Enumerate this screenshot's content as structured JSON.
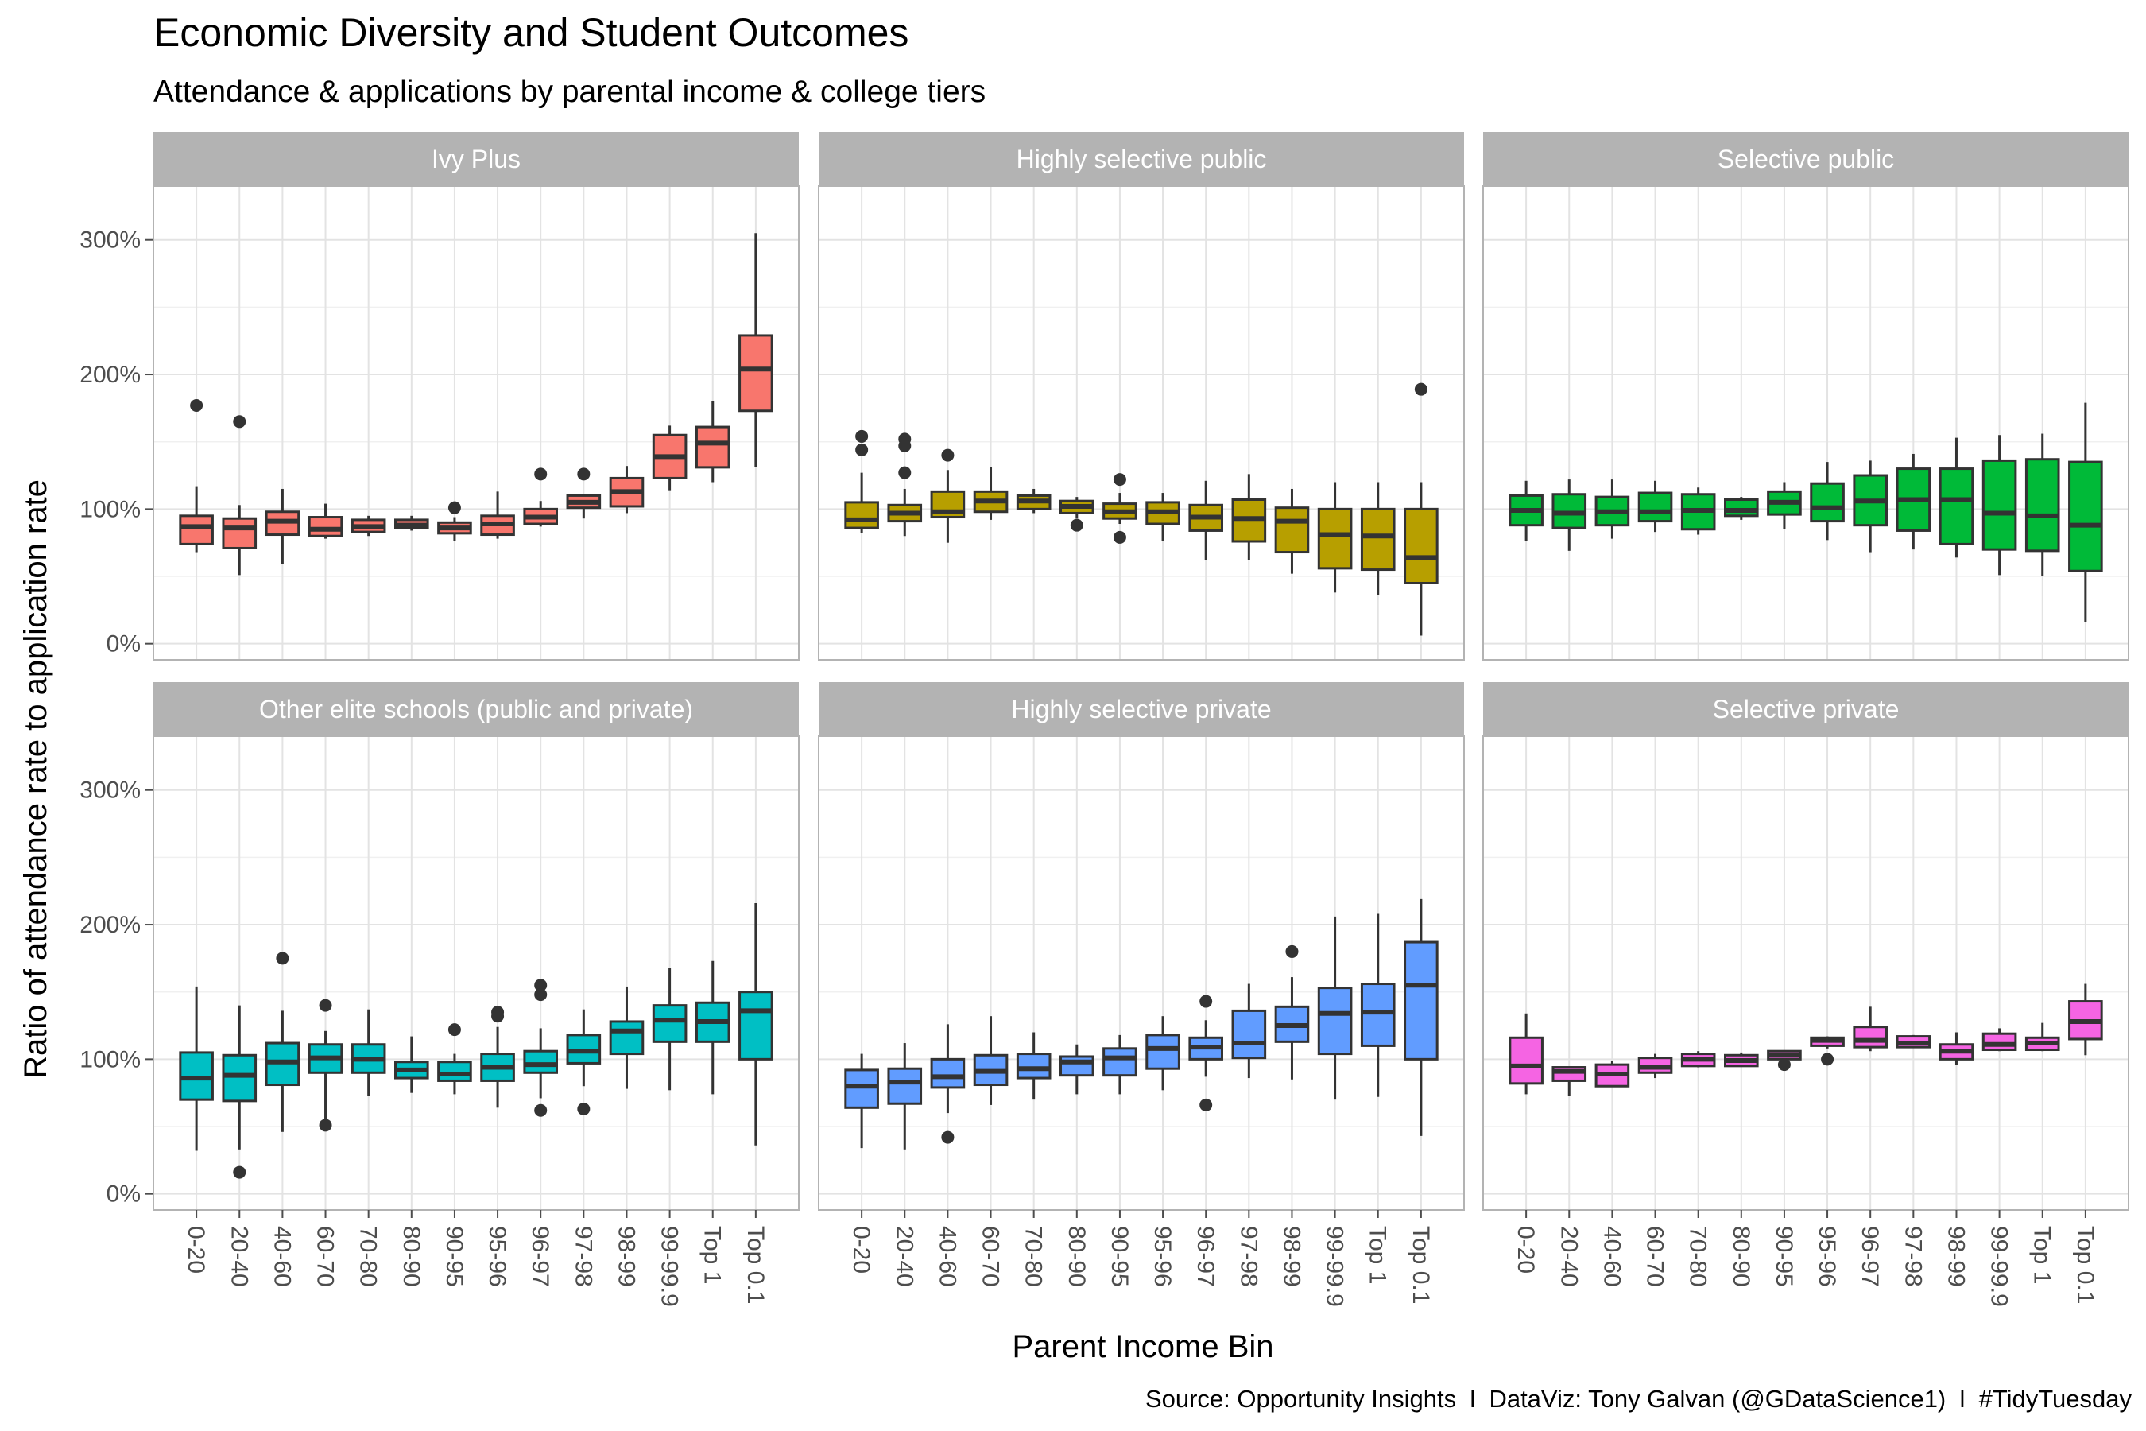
{
  "title": "Economic Diversity and Student Outcomes",
  "subtitle": "Attendance & applications by parental income & college tiers",
  "caption": "Source: Opportunity Insights  l  DataViz: Tony Galvan (@GDataScience1)  l  #TidyTuesday",
  "chart_data": {
    "type": "boxplot",
    "xlabel": "Parent Income Bin",
    "ylabel": "Ratio of attendance rate to application rate",
    "ylim": [
      -0.12,
      3.4
    ],
    "y_ticks": [
      0,
      1,
      2,
      3
    ],
    "y_tick_labels": [
      "0%",
      "100%",
      "200%",
      "300%"
    ],
    "categories": [
      "0-20",
      "20-40",
      "40-60",
      "60-70",
      "70-80",
      "80-90",
      "90-95",
      "95-96",
      "96-97",
      "97-98",
      "98-99",
      "99-99.9",
      "Top 1",
      "Top 0.1"
    ],
    "grid": true,
    "legend": "none",
    "box_fields": [
      "whisker_low",
      "q1",
      "median",
      "q3",
      "whisker_high"
    ],
    "panels": [
      {
        "name": "Ivy Plus",
        "color": "#F8766D",
        "boxes": [
          [
            0.68,
            0.74,
            0.87,
            0.95,
            1.17
          ],
          [
            0.51,
            0.71,
            0.86,
            0.93,
            1.03
          ],
          [
            0.59,
            0.81,
            0.91,
            0.98,
            1.15
          ],
          [
            0.78,
            0.8,
            0.85,
            0.94,
            1.04
          ],
          [
            0.8,
            0.83,
            0.87,
            0.92,
            0.95
          ],
          [
            0.84,
            0.86,
            0.88,
            0.92,
            0.95
          ],
          [
            0.76,
            0.82,
            0.86,
            0.9,
            0.94
          ],
          [
            0.78,
            0.81,
            0.89,
            0.95,
            1.13
          ],
          [
            0.87,
            0.89,
            0.94,
            1.0,
            1.06
          ],
          [
            0.93,
            1.01,
            1.05,
            1.1,
            1.11
          ],
          [
            0.97,
            1.02,
            1.13,
            1.23,
            1.32
          ],
          [
            1.14,
            1.23,
            1.39,
            1.55,
            1.62
          ],
          [
            1.2,
            1.31,
            1.49,
            1.61,
            1.8
          ],
          [
            1.31,
            1.73,
            2.04,
            2.29,
            3.05
          ]
        ],
        "outliers": [
          [
            1.77
          ],
          [
            1.65
          ],
          [],
          [],
          [],
          [],
          [
            1.01
          ],
          [],
          [
            1.26
          ],
          [
            1.26
          ],
          [],
          [],
          [],
          []
        ]
      },
      {
        "name": "Highly selective public",
        "color": "#B79F00",
        "boxes": [
          [
            0.82,
            0.86,
            0.92,
            1.05,
            1.27
          ],
          [
            0.8,
            0.91,
            0.97,
            1.03,
            1.15
          ],
          [
            0.75,
            0.94,
            0.98,
            1.13,
            1.29
          ],
          [
            0.92,
            0.98,
            1.06,
            1.13,
            1.31
          ],
          [
            0.97,
            1.0,
            1.06,
            1.1,
            1.15
          ],
          [
            0.93,
            0.97,
            1.02,
            1.06,
            1.09
          ],
          [
            0.89,
            0.93,
            0.98,
            1.04,
            1.12
          ],
          [
            0.76,
            0.89,
            0.98,
            1.05,
            1.12
          ],
          [
            0.62,
            0.84,
            0.94,
            1.03,
            1.21
          ],
          [
            0.62,
            0.76,
            0.93,
            1.07,
            1.26
          ],
          [
            0.52,
            0.68,
            0.91,
            1.01,
            1.15
          ],
          [
            0.38,
            0.56,
            0.81,
            1.0,
            1.2
          ],
          [
            0.36,
            0.55,
            0.8,
            1.0,
            1.2
          ],
          [
            0.06,
            0.45,
            0.64,
            1.0,
            1.2
          ]
        ],
        "outliers": [
          [
            1.54,
            1.44
          ],
          [
            1.52,
            1.47,
            1.27
          ],
          [
            1.4
          ],
          [],
          [],
          [
            0.88
          ],
          [
            1.22,
            0.79
          ],
          [],
          [],
          [],
          [],
          [],
          [],
          [
            1.89
          ]
        ]
      },
      {
        "name": "Selective public",
        "color": "#00BA38",
        "boxes": [
          [
            0.76,
            0.88,
            0.99,
            1.1,
            1.21
          ],
          [
            0.69,
            0.86,
            0.97,
            1.11,
            1.22
          ],
          [
            0.78,
            0.88,
            0.98,
            1.09,
            1.22
          ],
          [
            0.83,
            0.91,
            0.98,
            1.12,
            1.21
          ],
          [
            0.81,
            0.85,
            0.99,
            1.11,
            1.16
          ],
          [
            0.92,
            0.95,
            0.99,
            1.07,
            1.09
          ],
          [
            0.85,
            0.96,
            1.05,
            1.13,
            1.2
          ],
          [
            0.77,
            0.91,
            1.01,
            1.19,
            1.35
          ],
          [
            0.68,
            0.88,
            1.06,
            1.25,
            1.36
          ],
          [
            0.7,
            0.84,
            1.07,
            1.3,
            1.41
          ],
          [
            0.64,
            0.74,
            1.07,
            1.3,
            1.53
          ],
          [
            0.51,
            0.7,
            0.97,
            1.36,
            1.55
          ],
          [
            0.5,
            0.69,
            0.95,
            1.37,
            1.56
          ],
          [
            0.16,
            0.54,
            0.88,
            1.35,
            1.79
          ]
        ],
        "outliers": [
          [],
          [],
          [],
          [],
          [],
          [],
          [],
          [],
          [],
          [],
          [],
          [],
          [],
          []
        ]
      },
      {
        "name": "Other elite schools (public and private)",
        "color": "#00BFC4",
        "boxes": [
          [
            0.32,
            0.7,
            0.86,
            1.05,
            1.54
          ],
          [
            0.33,
            0.69,
            0.88,
            1.03,
            1.4
          ],
          [
            0.46,
            0.81,
            0.98,
            1.12,
            1.36
          ],
          [
            0.52,
            0.9,
            1.01,
            1.11,
            1.21
          ],
          [
            0.73,
            0.9,
            1.0,
            1.11,
            1.37
          ],
          [
            0.75,
            0.86,
            0.92,
            0.98,
            1.17
          ],
          [
            0.74,
            0.84,
            0.89,
            0.98,
            1.04
          ],
          [
            0.64,
            0.84,
            0.94,
            1.04,
            1.24
          ],
          [
            0.71,
            0.9,
            0.96,
            1.06,
            1.23
          ],
          [
            0.8,
            0.97,
            1.06,
            1.18,
            1.37
          ],
          [
            0.78,
            1.04,
            1.21,
            1.28,
            1.54
          ],
          [
            0.77,
            1.13,
            1.29,
            1.4,
            1.68
          ],
          [
            0.74,
            1.13,
            1.28,
            1.42,
            1.73
          ],
          [
            0.36,
            1.0,
            1.36,
            1.5,
            2.16
          ]
        ],
        "outliers": [
          [],
          [
            0.16
          ],
          [
            1.75
          ],
          [
            1.4,
            0.51
          ],
          [],
          [],
          [
            1.22
          ],
          [
            1.35,
            1.32
          ],
          [
            1.55,
            1.48,
            0.62
          ],
          [
            0.63
          ],
          [],
          [],
          [],
          []
        ]
      },
      {
        "name": "Highly selective private",
        "color": "#619CFF",
        "boxes": [
          [
            0.34,
            0.64,
            0.8,
            0.92,
            1.04
          ],
          [
            0.33,
            0.67,
            0.83,
            0.93,
            1.12
          ],
          [
            0.6,
            0.79,
            0.87,
            1.0,
            1.26
          ],
          [
            0.66,
            0.81,
            0.91,
            1.03,
            1.32
          ],
          [
            0.7,
            0.86,
            0.93,
            1.04,
            1.2
          ],
          [
            0.74,
            0.88,
            0.98,
            1.02,
            1.11
          ],
          [
            0.74,
            0.88,
            1.01,
            1.08,
            1.18
          ],
          [
            0.77,
            0.93,
            1.08,
            1.18,
            1.32
          ],
          [
            0.87,
            1.0,
            1.09,
            1.16,
            1.29
          ],
          [
            0.86,
            1.01,
            1.12,
            1.36,
            1.56
          ],
          [
            0.85,
            1.13,
            1.25,
            1.39,
            1.61
          ],
          [
            0.7,
            1.04,
            1.34,
            1.53,
            2.06
          ],
          [
            0.72,
            1.1,
            1.35,
            1.56,
            2.08
          ],
          [
            0.43,
            1.0,
            1.55,
            1.87,
            2.19
          ]
        ],
        "outliers": [
          [],
          [],
          [
            0.42
          ],
          [],
          [],
          [],
          [],
          [],
          [
            1.43,
            0.66
          ],
          [],
          [
            1.8
          ],
          [],
          [],
          []
        ]
      },
      {
        "name": "Selective private",
        "color": "#F564E3",
        "boxes": [
          [
            0.74,
            0.82,
            0.95,
            1.16,
            1.34
          ],
          [
            0.73,
            0.84,
            0.91,
            0.94,
            0.94
          ],
          [
            0.8,
            0.8,
            0.89,
            0.96,
            0.99
          ],
          [
            0.86,
            0.9,
            0.94,
            1.01,
            1.04
          ],
          [
            0.94,
            0.95,
            1.0,
            1.04,
            1.06
          ],
          [
            0.95,
            0.95,
            0.99,
            1.03,
            1.05
          ],
          [
            0.98,
            1.0,
            1.03,
            1.06,
            1.06
          ],
          [
            1.08,
            1.1,
            1.14,
            1.16,
            1.17
          ],
          [
            1.06,
            1.09,
            1.14,
            1.24,
            1.39
          ],
          [
            1.09,
            1.09,
            1.12,
            1.17,
            1.18
          ],
          [
            0.96,
            1.0,
            1.06,
            1.11,
            1.2
          ],
          [
            1.06,
            1.07,
            1.11,
            1.19,
            1.23
          ],
          [
            1.06,
            1.07,
            1.12,
            1.16,
            1.27
          ],
          [
            1.03,
            1.15,
            1.28,
            1.43,
            1.56
          ]
        ],
        "outliers": [
          [],
          [],
          [],
          [],
          [],
          [],
          [
            0.96
          ],
          [
            1.0
          ],
          [],
          [],
          [],
          [],
          [],
          []
        ]
      }
    ]
  }
}
